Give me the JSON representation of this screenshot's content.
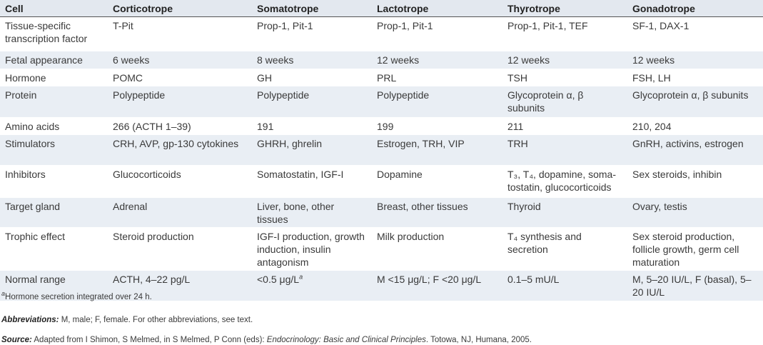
{
  "table": {
    "headers": [
      "Cell",
      "Corticotrope",
      "Somatotrope",
      "Lactotrope",
      "Thyrotrope",
      "Gonadotrope"
    ],
    "rows": [
      {
        "cells": [
          "Tissue-specific transcription factor",
          "T-Pit",
          "Prop-1, Pit-1",
          "Prop-1, Pit-1",
          "Prop-1, Pit-1, TEF",
          "SF-1, DAX-1"
        ]
      },
      {
        "cells": [
          "Fetal appearance",
          "6 weeks",
          "8 weeks",
          "12 weeks",
          "12 weeks",
          "12 weeks"
        ]
      },
      {
        "cells": [
          "Hormone",
          "POMC",
          "GH",
          "PRL",
          "TSH",
          "FSH, LH"
        ]
      },
      {
        "cells": [
          "Protein",
          "Polypeptide",
          "Polypeptide",
          "Polypeptide",
          "Glycoprotein α, β subunits",
          "Glycoprotein α, β subunits"
        ]
      },
      {
        "cells": [
          "Amino acids",
          "266 (ACTH 1–39)",
          "191",
          "199",
          "211",
          "210, 204"
        ]
      },
      {
        "cells": [
          "Stimulators",
          "CRH, AVP, gp-130 cytokines",
          "GHRH, ghrelin",
          "Estrogen, TRH, VIP",
          "TRH",
          "GnRH, activins, estrogen"
        ]
      },
      {
        "cells": [
          "Inhibitors",
          "Glucocorticoids",
          "Somatostatin, IGF-I",
          "Dopamine",
          "T₃, T₄, dopamine, soma-tostatin, glucocorticoids",
          "Sex steroids, inhibin"
        ]
      },
      {
        "cells": [
          "Target gland",
          "Adrenal",
          "Liver, bone, other tissues",
          "Breast, other tissues",
          "Thyroid",
          "Ovary, testis"
        ]
      },
      {
        "cells": [
          "Trophic effect",
          "Steroid production",
          "IGF-I production, growth induction, insulin antagonism",
          "Milk production",
          "T₄ synthesis and secretion",
          "Sex steroid production, follicle growth, germ cell maturation"
        ]
      },
      {
        "cells": [
          "Normal range",
          "ACTH, 4–22 pg/L",
          "<0.5 μg/L",
          "M <15 μg/L; F <20 μg/L",
          "0.1–5 mU/L",
          "M, 5–20 IU/L, F (basal), 5–20 IU/L"
        ],
        "sups": {
          "2": "a"
        }
      }
    ]
  },
  "footnotes": {
    "a_mark": "a",
    "a_text": "Hormone secretion integrated over 24 h.",
    "abbrev_label": "Abbreviations:",
    "abbrev_text": " M, male; F, female. For other abbreviations, see text.",
    "source_label": "Source:",
    "source_text1": " Adapted from I Shimon, S Melmed, in S Melmed, P Conn (eds): ",
    "source_book": "Endocrinology: Basic and Clinical Principles",
    "source_text2": ". Totowa, NJ, Humana, 2005."
  },
  "colors": {
    "header_bg": "#e3e8ef",
    "row_shade": "#e9eef4"
  }
}
